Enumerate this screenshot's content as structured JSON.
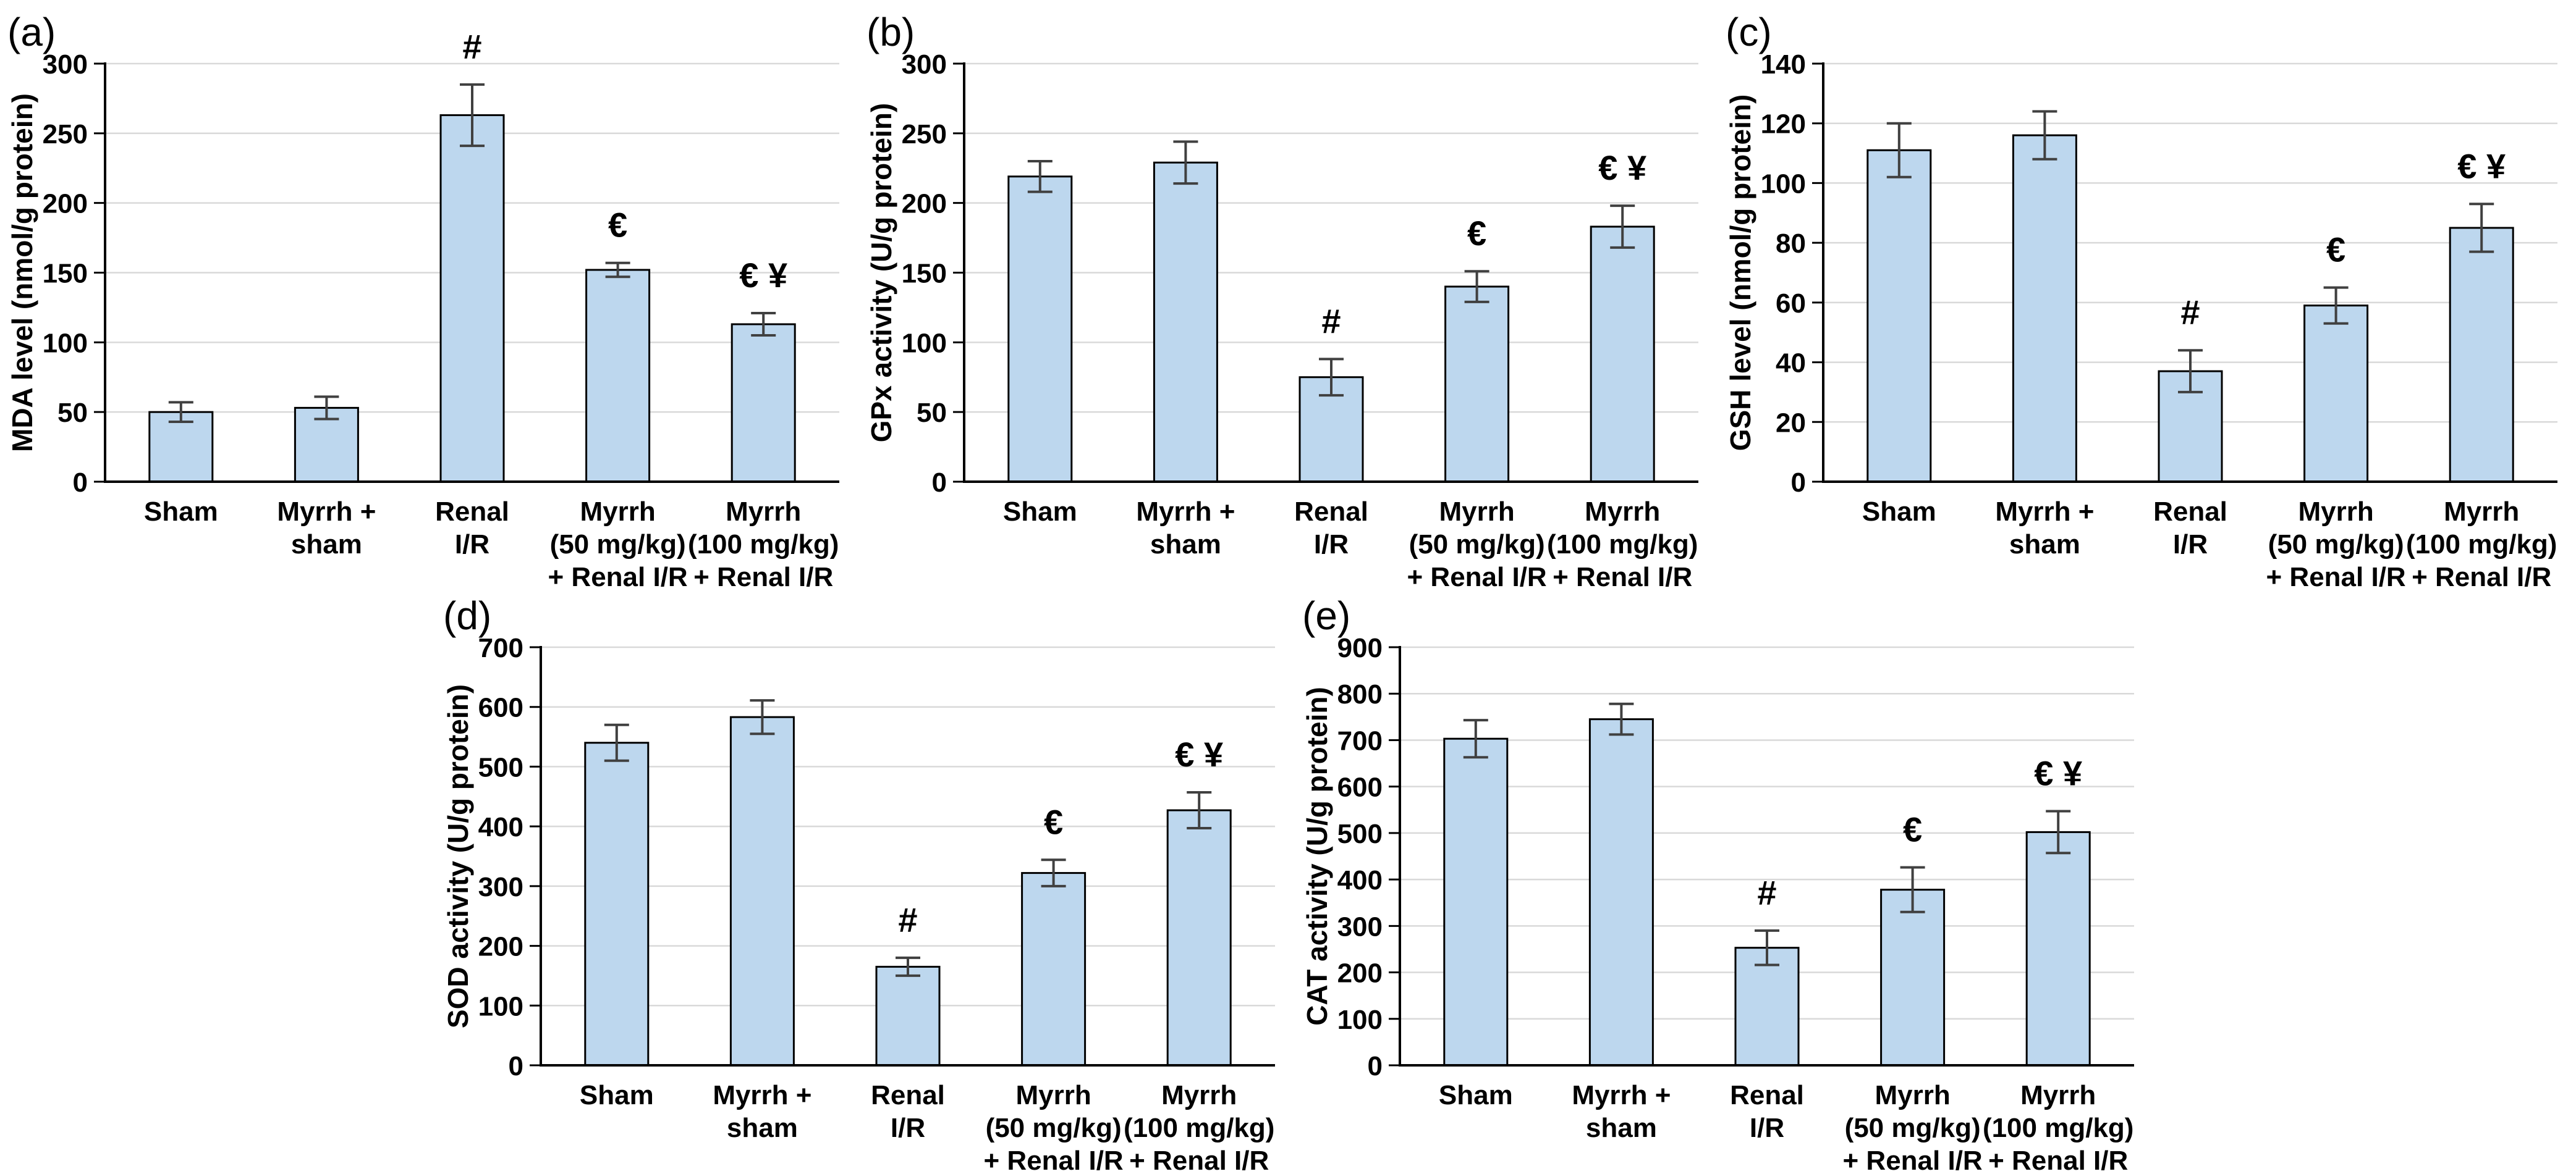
{
  "figure": {
    "background": "#ffffff",
    "panel_count": 5
  },
  "style": {
    "bar_fill": "#BDD7EE",
    "bar_border": "#000000",
    "error_color": "#404040",
    "gridline_color": "#D9D9D9",
    "axis_color": "#000000",
    "text_color": "#000000"
  },
  "chart_data": [
    {
      "type": "bar",
      "panel": "(a)",
      "ylabel": "MDA level (nmol/g protein)",
      "ylim": [
        0,
        300
      ],
      "ystep": 50,
      "grid": true,
      "legend": "none",
      "categories": [
        "Sham",
        "Myrrh +\nsham",
        "Renal\nI/R",
        "Myrrh\n(50 mg/kg)\n+ Renal I/R",
        "Myrrh\n(100 mg/kg)\n+ Renal I/R"
      ],
      "values": [
        50,
        53,
        263,
        152,
        113
      ],
      "errors": [
        7,
        8,
        22,
        5,
        8
      ],
      "annotations": [
        "",
        "",
        "#",
        "€",
        "€ ¥"
      ]
    },
    {
      "type": "bar",
      "panel": "(b)",
      "ylabel": "GPx activity (U/g protein)",
      "ylim": [
        0,
        300
      ],
      "ystep": 50,
      "grid": true,
      "legend": "none",
      "categories": [
        "Sham",
        "Myrrh +\nsham",
        "Renal\nI/R",
        "Myrrh\n(50 mg/kg)\n+ Renal I/R",
        "Myrrh\n(100 mg/kg)\n+ Renal I/R"
      ],
      "values": [
        219,
        229,
        75,
        140,
        183
      ],
      "errors": [
        11,
        15,
        13,
        11,
        15
      ],
      "annotations": [
        "",
        "",
        "#",
        "€",
        "€ ¥"
      ]
    },
    {
      "type": "bar",
      "panel": "(c)",
      "ylabel": "GSH level (nmol/g protein)",
      "ylim": [
        0,
        140
      ],
      "ystep": 20,
      "grid": true,
      "legend": "none",
      "categories": [
        "Sham",
        "Myrrh +\nsham",
        "Renal\nI/R",
        "Myrrh\n(50 mg/kg)\n+ Renal I/R",
        "Myrrh\n(100 mg/kg)\n+ Renal I/R"
      ],
      "values": [
        111,
        116,
        37,
        59,
        85
      ],
      "errors": [
        9,
        8,
        7,
        6,
        8
      ],
      "annotations": [
        "",
        "",
        "#",
        "€",
        "€ ¥"
      ]
    },
    {
      "type": "bar",
      "panel": "(d)",
      "ylabel": "SOD activity (U/g protein)",
      "ylim": [
        0,
        700
      ],
      "ystep": 100,
      "grid": true,
      "legend": "none",
      "categories": [
        "Sham",
        "Myrrh +\nsham",
        "Renal\nI/R",
        "Myrrh\n(50 mg/kg)\n+ Renal I/R",
        "Myrrh\n(100 mg/kg)\n+ Renal I/R"
      ],
      "values": [
        540,
        583,
        165,
        322,
        427
      ],
      "errors": [
        30,
        28,
        15,
        22,
        30
      ],
      "annotations": [
        "",
        "",
        "#",
        "€",
        "€ ¥"
      ]
    },
    {
      "type": "bar",
      "panel": "(e)",
      "ylabel": "CAT activity (U/g protein)",
      "ylim": [
        0,
        900
      ],
      "ystep": 100,
      "grid": true,
      "legend": "none",
      "categories": [
        "Sham",
        "Myrrh +\nsham",
        "Renal\nI/R",
        "Myrrh\n(50 mg/kg)\n+ Renal I/R",
        "Myrrh\n(100 mg/kg)\n+ Renal I/R"
      ],
      "values": [
        703,
        745,
        253,
        378,
        502
      ],
      "errors": [
        40,
        33,
        37,
        48,
        45
      ],
      "annotations": [
        "",
        "",
        "#",
        "€",
        "€ ¥"
      ]
    }
  ]
}
